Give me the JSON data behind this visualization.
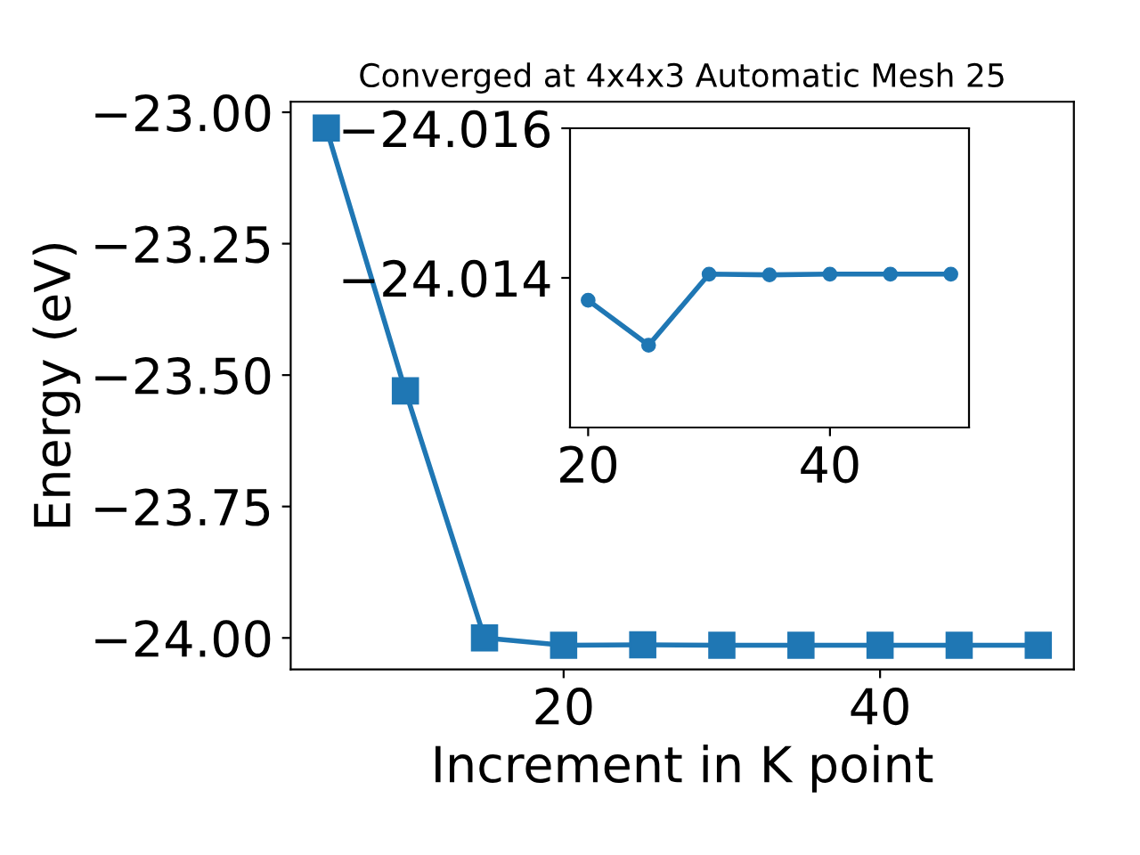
{
  "chart_data": [
    {
      "type": "line",
      "title": "Converged at 4x4x3 Automatic Mesh 25",
      "xlabel": "Increment in K point",
      "ylabel": "Energy (eV)",
      "x": [
        5,
        10,
        15,
        20,
        25,
        30,
        35,
        40,
        45,
        50
      ],
      "series": [
        {
          "color": "#1f77b4",
          "values": [
            -23.03,
            -23.53,
            -24.0,
            -24.014,
            -24.013,
            -24.014,
            -24.014,
            -24.014,
            -24.014,
            -24.014
          ]
        }
      ],
      "xlim": [
        2.75,
        52.25
      ],
      "ylim": [
        -24.06,
        -22.98
      ],
      "xticks": [
        20,
        40
      ],
      "yticks": [
        {
          "value": -24.0,
          "label": "−24.00"
        },
        -23.75,
        {
          "value": -23.5,
          "label": "−23.50"
        },
        -23.25,
        {
          "value": -23.0,
          "label": "−23.00"
        }
      ],
      "marker": "square",
      "line_style": "solid",
      "grid": false,
      "legend": false
    },
    {
      "type": "line",
      "x": [
        20,
        25,
        30,
        35,
        40,
        45,
        50
      ],
      "series": [
        {
          "color": "#1f77b4",
          "values": [
            -24.0137,
            -24.0131,
            -24.01405,
            -24.01404,
            -24.01405,
            -24.01405,
            -24.01405
          ]
        }
      ],
      "xlim": [
        18.5,
        51.5
      ],
      "ylim": [
        -24.012,
        -24.016
      ],
      "xticks": [
        20,
        40
      ],
      "yticks": [
        -24.016,
        -24.014
      ],
      "marker": "circle",
      "line_style": "solid",
      "grid": false,
      "legend": false
    }
  ]
}
